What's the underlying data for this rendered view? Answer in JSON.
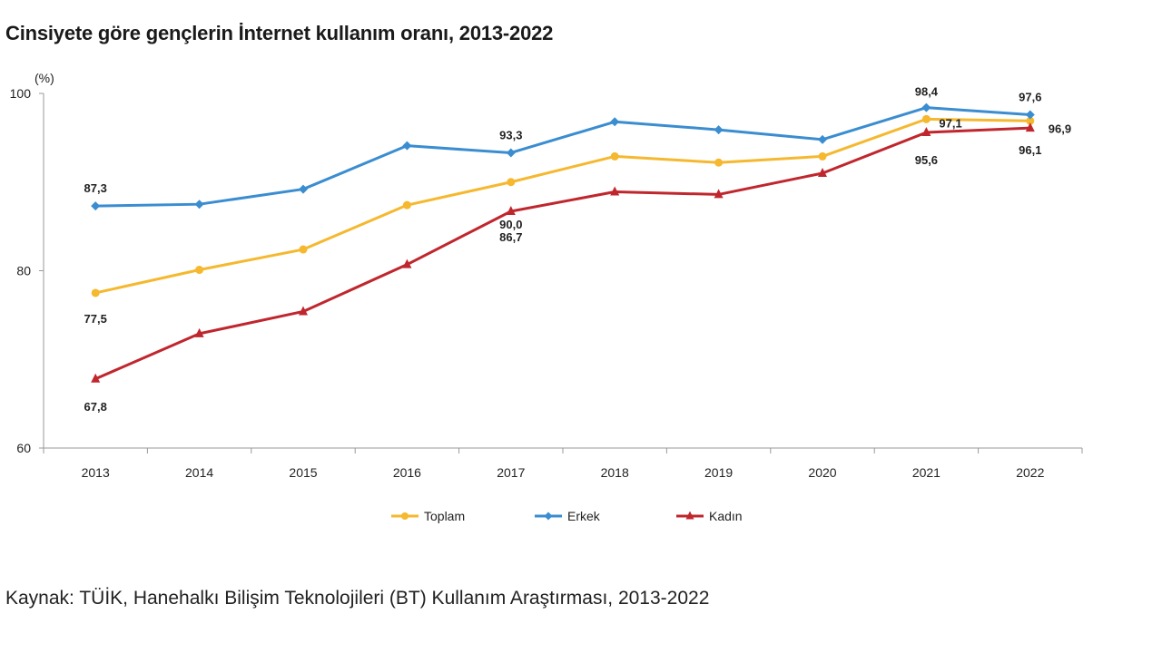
{
  "title": "Cinsiyete göre gençlerin İnternet kullanım oranı, 2013-2022",
  "source": "Kaynak: TÜİK, Hanehalkı Bilişim Teknolojileri (BT) Kullanım Araştırması, 2013-2022",
  "chart_data": {
    "type": "line",
    "title": "Cinsiyete göre gençlerin İnternet kullanım oranı, 2013-2022",
    "unit": "(%)",
    "x": [
      "2013",
      "2014",
      "2015",
      "2016",
      "2017",
      "2018",
      "2019",
      "2020",
      "2021",
      "2022"
    ],
    "ylim": [
      60,
      100
    ],
    "yticks": [
      60,
      80,
      100
    ],
    "grid": false,
    "legend": "bottom",
    "series": [
      {
        "name": "Toplam",
        "color": "#F5B82E",
        "marker": "circle",
        "values": [
          77.5,
          80.1,
          82.4,
          87.4,
          90.0,
          92.9,
          92.2,
          92.9,
          97.1,
          96.9
        ]
      },
      {
        "name": "Erkek",
        "color": "#3A8DD0",
        "marker": "diamond",
        "values": [
          87.3,
          87.5,
          89.2,
          94.1,
          93.3,
          96.8,
          95.9,
          94.8,
          98.4,
          97.6
        ]
      },
      {
        "name": "Kadın",
        "color": "#C0262D",
        "marker": "triangle",
        "values": [
          67.8,
          72.9,
          75.4,
          80.7,
          86.7,
          88.9,
          88.6,
          91.0,
          95.6,
          96.1
        ]
      }
    ],
    "data_labels": [
      {
        "series": "Toplam",
        "index": 0,
        "text": "77,5"
      },
      {
        "series": "Toplam",
        "index": 4,
        "text": "90,0"
      },
      {
        "series": "Toplam",
        "index": 8,
        "text": "97,1"
      },
      {
        "series": "Toplam",
        "index": 9,
        "text": "96,9"
      },
      {
        "series": "Erkek",
        "index": 0,
        "text": "87,3"
      },
      {
        "series": "Erkek",
        "index": 4,
        "text": "93,3"
      },
      {
        "series": "Erkek",
        "index": 8,
        "text": "98,4"
      },
      {
        "series": "Erkek",
        "index": 9,
        "text": "97,6"
      },
      {
        "series": "Kadın",
        "index": 0,
        "text": "67,8"
      },
      {
        "series": "Kadın",
        "index": 4,
        "text": "86,7"
      },
      {
        "series": "Kadın",
        "index": 8,
        "text": "95,6"
      },
      {
        "series": "Kadın",
        "index": 9,
        "text": "96,1"
      }
    ]
  }
}
